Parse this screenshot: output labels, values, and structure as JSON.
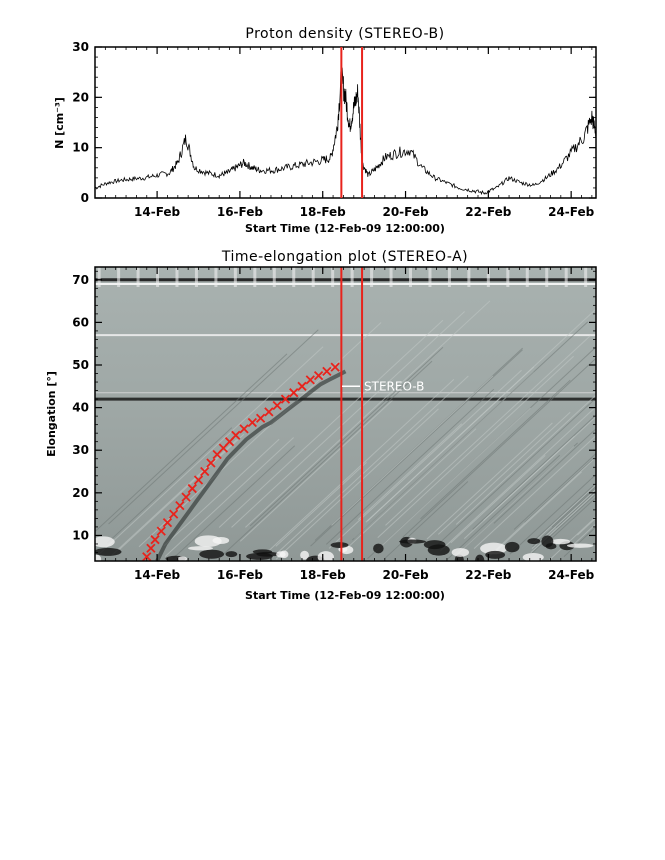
{
  "chart_data": [
    {
      "type": "line",
      "title": "Proton density (STEREO-B)",
      "ylabel": "N [cm⁻³]",
      "xlabel": "Start Time (12-Feb-09 12:00:00)",
      "x_ticks": [
        {
          "x": 1.5,
          "label": "14-Feb"
        },
        {
          "x": 3.5,
          "label": "16-Feb"
        },
        {
          "x": 5.5,
          "label": "18-Feb"
        },
        {
          "x": 7.5,
          "label": "20-Feb"
        },
        {
          "x": 9.5,
          "label": "22-Feb"
        },
        {
          "x": 11.5,
          "label": "24-Feb"
        }
      ],
      "xlim": [
        0,
        12.1
      ],
      "ylim": [
        0,
        30
      ],
      "y_ticks": [
        0,
        10,
        20,
        30
      ],
      "vertical_lines": [
        5.95,
        6.45
      ],
      "vertical_line_color": "#e8231c",
      "series": [
        {
          "x": [
            0.0,
            0.3,
            0.6,
            0.9,
            1.2,
            1.5,
            1.8,
            2.0,
            2.2,
            2.4,
            2.7,
            3.0,
            3.2,
            3.4,
            3.6,
            3.8,
            4.0,
            4.3,
            4.6,
            4.9,
            5.2,
            5.5,
            5.7,
            5.85,
            5.95,
            6.05,
            6.15,
            6.25,
            6.35,
            6.45,
            6.6,
            6.8,
            7.0,
            7.3,
            7.6,
            7.9,
            8.2,
            8.5,
            8.8,
            9.1,
            9.4,
            9.7,
            10.0,
            10.3,
            10.6,
            10.9,
            11.2,
            11.5,
            11.8,
            12.0,
            12.1
          ],
          "y": [
            2,
            3,
            3.5,
            3.8,
            4,
            4.5,
            5,
            7,
            12,
            6,
            5,
            4.5,
            5,
            6,
            7,
            6,
            5.5,
            5.5,
            6,
            6.5,
            7,
            7.5,
            8,
            14,
            24,
            20,
            14,
            18,
            21,
            7,
            4.5,
            6,
            8,
            9,
            9.5,
            6,
            4,
            3,
            2,
            1.5,
            1,
            2,
            4,
            3,
            2.5,
            4,
            6,
            9,
            12,
            16,
            13
          ]
        }
      ]
    },
    {
      "type": "heatmap",
      "title": "Time-elongation plot (STEREO-A)",
      "ylabel": "Elongation [°]",
      "xlabel": "Start Time (12-Feb-09 12:00:00)",
      "x_ticks": [
        {
          "x": 1.5,
          "label": "14-Feb"
        },
        {
          "x": 3.5,
          "label": "16-Feb"
        },
        {
          "x": 5.5,
          "label": "18-Feb"
        },
        {
          "x": 7.5,
          "label": "20-Feb"
        },
        {
          "x": 9.5,
          "label": "22-Feb"
        },
        {
          "x": 11.5,
          "label": "24-Feb"
        }
      ],
      "xlim": [
        0,
        12.1
      ],
      "ylim": [
        4,
        73
      ],
      "y_ticks": [
        10,
        20,
        30,
        40,
        50,
        60,
        70
      ],
      "vertical_lines": [
        5.95,
        6.45
      ],
      "vertical_line_color": "#e8231c",
      "annotation": {
        "label": "STEREO-B",
        "elongation": 45
      },
      "track": {
        "color": "#e8231c",
        "points": [
          {
            "t": 1.25,
            "e": 5
          },
          {
            "t": 1.35,
            "e": 7
          },
          {
            "t": 1.45,
            "e": 9
          },
          {
            "t": 1.6,
            "e": 11
          },
          {
            "t": 1.75,
            "e": 13
          },
          {
            "t": 1.9,
            "e": 15
          },
          {
            "t": 2.05,
            "e": 17
          },
          {
            "t": 2.2,
            "e": 19
          },
          {
            "t": 2.35,
            "e": 21
          },
          {
            "t": 2.5,
            "e": 23
          },
          {
            "t": 2.65,
            "e": 25
          },
          {
            "t": 2.8,
            "e": 27
          },
          {
            "t": 2.95,
            "e": 29
          },
          {
            "t": 3.1,
            "e": 30.5
          },
          {
            "t": 3.25,
            "e": 32
          },
          {
            "t": 3.4,
            "e": 33.5
          },
          {
            "t": 3.6,
            "e": 35
          },
          {
            "t": 3.8,
            "e": 36.5
          },
          {
            "t": 4.0,
            "e": 37.5
          },
          {
            "t": 4.2,
            "e": 39
          },
          {
            "t": 4.4,
            "e": 40.5
          },
          {
            "t": 4.6,
            "e": 42
          },
          {
            "t": 4.8,
            "e": 43.5
          },
          {
            "t": 5.0,
            "e": 45
          },
          {
            "t": 5.2,
            "e": 46.5
          },
          {
            "t": 5.4,
            "e": 47.5
          },
          {
            "t": 5.6,
            "e": 48.5
          },
          {
            "t": 5.8,
            "e": 49.5
          }
        ]
      }
    }
  ]
}
